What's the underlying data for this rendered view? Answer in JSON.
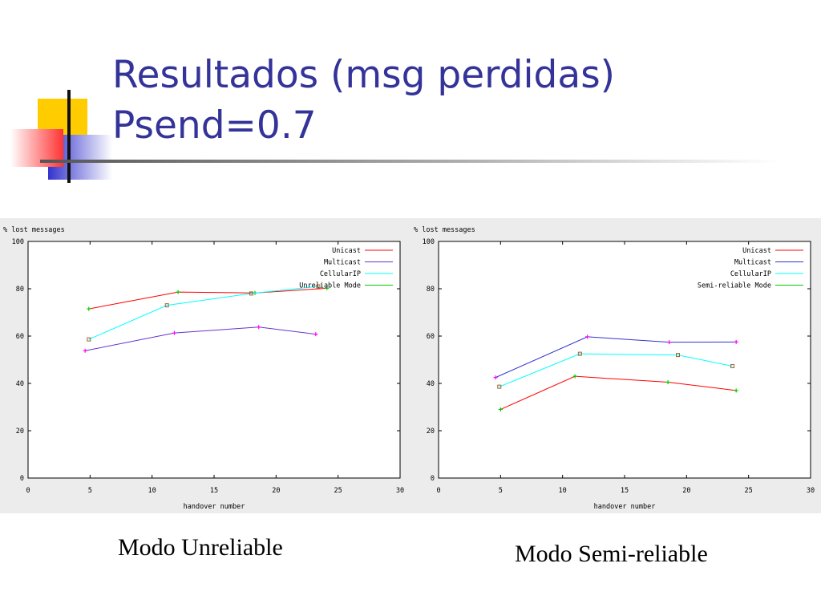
{
  "slide": {
    "title_line1": "Resultados (msg perdidas)",
    "title_line2": "Psend=0.7"
  },
  "captions": {
    "left": "Modo Unreliable",
    "right": "Modo Semi-reliable"
  },
  "colors": {
    "title": "#333399",
    "deco_yellow": "#ffcc00",
    "deco_red": "#ff3333",
    "deco_blue": "#3333cc",
    "unicast": "#ff0000",
    "multicast": "#6633cc",
    "cellularip": "#00ffff"
  },
  "chart_data": [
    {
      "type": "line",
      "ylabel": "% lost messages",
      "xlabel": "handover number",
      "xlim": [
        0,
        30
      ],
      "ylim": [
        0,
        100
      ],
      "x_ticks": [
        "0",
        "5",
        "10",
        "15",
        "20",
        "25",
        "30"
      ],
      "y_ticks": [
        "0",
        "20",
        "40",
        "60",
        "80",
        "100"
      ],
      "legend_position": "top-right",
      "grid": false,
      "series": [
        {
          "name": "Unicast",
          "color": "#ff0000",
          "marker": "plus",
          "marker_color": "#00cc00",
          "x": [
            4.9,
            12.1,
            18.3,
            24.1
          ],
          "values": [
            71.5,
            78.6,
            78.2,
            80.2
          ]
        },
        {
          "name": "Multicast",
          "color": "#6633cc",
          "marker": "plus",
          "marker_color": "#ff00ff",
          "x": [
            4.6,
            11.8,
            18.6,
            23.2
          ],
          "values": [
            53.8,
            61.3,
            63.8,
            60.8
          ]
        },
        {
          "name": "CellularIP",
          "color": "#00ffff",
          "marker": "square",
          "marker_color": "#996633",
          "x": [
            4.9,
            11.2,
            18.0,
            23.4
          ],
          "values": [
            58.6,
            73.0,
            78.0,
            81.0
          ]
        },
        {
          "name": "Unreliable Mode",
          "color": "#00cc00",
          "marker": "none",
          "x": [],
          "values": []
        }
      ]
    },
    {
      "type": "line",
      "ylabel": "% lost messages",
      "xlabel": "handover number",
      "xlim": [
        0,
        30
      ],
      "ylim": [
        0,
        100
      ],
      "x_ticks": [
        "0",
        "5",
        "10",
        "15",
        "20",
        "25",
        "30"
      ],
      "y_ticks": [
        "0",
        "20",
        "40",
        "60",
        "80",
        "100"
      ],
      "legend_position": "top-right",
      "grid": false,
      "series": [
        {
          "name": "Unicast",
          "color": "#ff0000",
          "marker": "plus",
          "marker_color": "#00cc00",
          "x": [
            5.0,
            11.0,
            18.5,
            24.0
          ],
          "values": [
            29.0,
            43.0,
            40.5,
            37.0
          ]
        },
        {
          "name": "Multicast",
          "color": "#3333cc",
          "marker": "plus",
          "marker_color": "#ff00ff",
          "x": [
            4.6,
            12.0,
            18.6,
            24.0
          ],
          "values": [
            42.5,
            59.7,
            57.4,
            57.5
          ]
        },
        {
          "name": "CellularIP",
          "color": "#00ffff",
          "marker": "square",
          "marker_color": "#996633",
          "x": [
            4.9,
            11.4,
            19.3,
            23.7
          ],
          "values": [
            38.6,
            52.5,
            52.0,
            47.3
          ]
        },
        {
          "name": "Semi-reliable Mode",
          "color": "#00cc00",
          "marker": "none",
          "x": [],
          "values": []
        }
      ]
    }
  ]
}
